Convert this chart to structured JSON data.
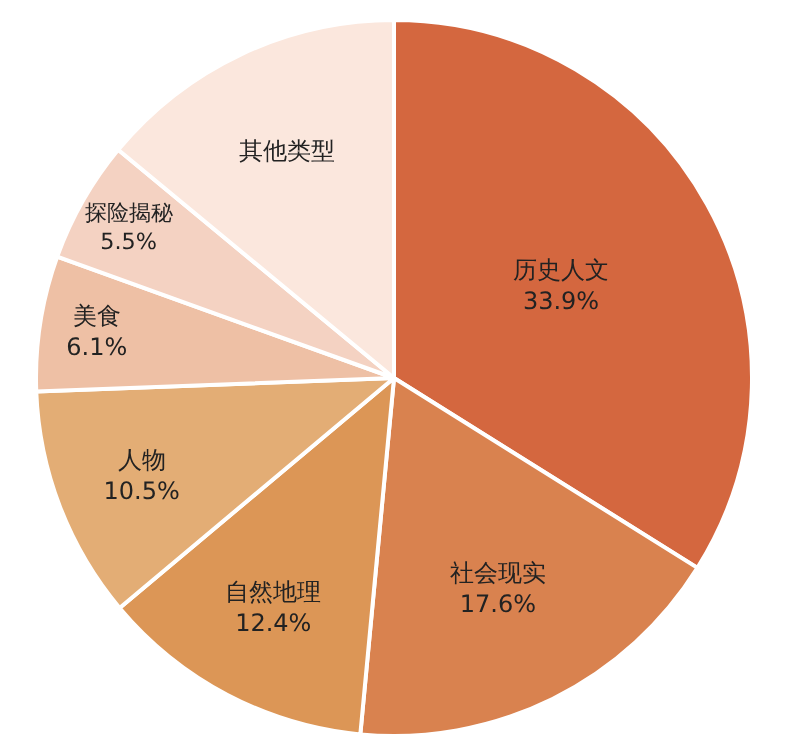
{
  "chart_data": {
    "type": "pie",
    "categories": [
      "历史人文",
      "社会现实",
      "自然地理",
      "人物",
      "美食",
      "探险揭秘",
      "其他类型"
    ],
    "values": [
      33.9,
      17.6,
      12.4,
      10.5,
      6.1,
      5.5,
      14.0
    ],
    "value_labels": [
      "33.9%",
      "17.6%",
      "12.4%",
      "10.5%",
      "6.1%",
      "5.5%",
      null
    ],
    "colors": [
      "#d4673f",
      "#d9824f",
      "#dc9656",
      "#e3ad75",
      "#eec0a5",
      "#f4d2c2",
      "#fbe7dd"
    ],
    "legend": false
  }
}
